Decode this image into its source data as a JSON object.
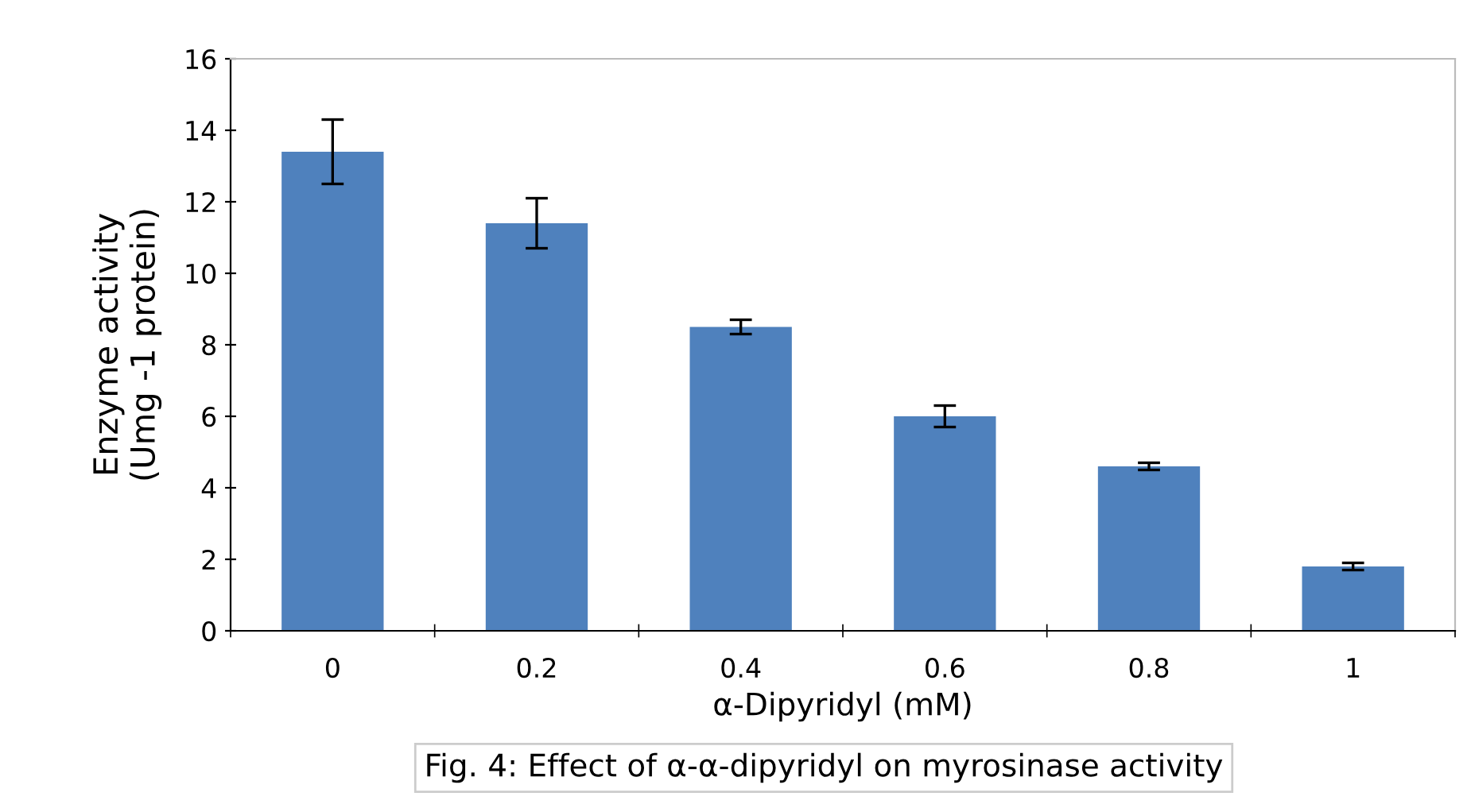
{
  "chart_data": {
    "type": "bar",
    "categories": [
      "0",
      "0.2",
      "0.4",
      "0.6",
      "0.8",
      "1"
    ],
    "values": [
      13.4,
      11.4,
      8.5,
      6.0,
      4.6,
      1.8
    ],
    "errors": [
      0.9,
      0.7,
      0.2,
      0.3,
      0.1,
      0.1
    ],
    "color": "#4f81bd",
    "xlabel": "α-Dipyridyl (mM)",
    "ylabel": "Enzyme activity\n(Umg -1 protein)",
    "ylim": [
      0,
      16
    ],
    "yticks": [
      0,
      2,
      4,
      6,
      8,
      10,
      12,
      14,
      16
    ],
    "grid": false,
    "annotations": [
      "Fig. 4: Effect of α-α-dipyridyl on myrosinase activity"
    ]
  }
}
